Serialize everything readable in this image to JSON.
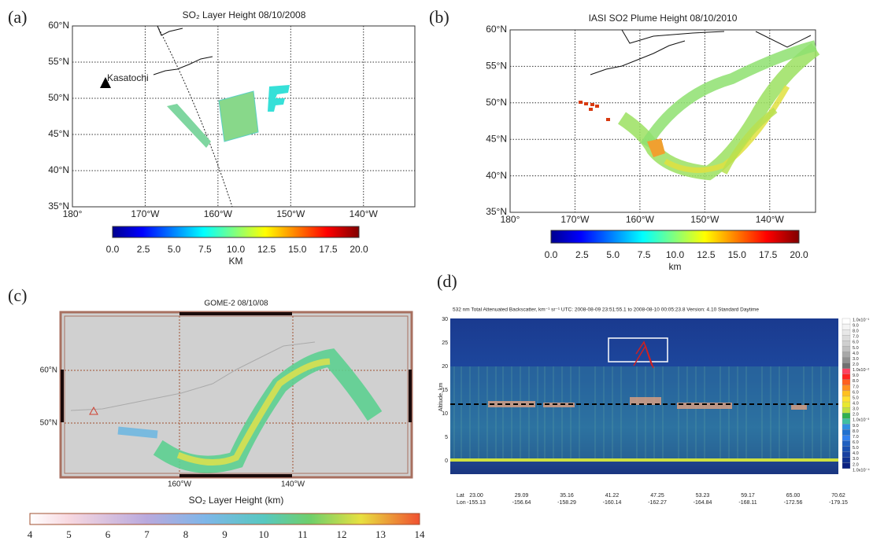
{
  "panels": [
    {
      "label": "(a)",
      "title": "SO₂ Layer Height 08/10/2008",
      "lat_ticks": [
        "60°N",
        "55°N",
        "50°N",
        "45°N",
        "40°N",
        "35°N"
      ],
      "lon_ticks": [
        "180°",
        "170°W",
        "160°W",
        "150°W",
        "140°W"
      ],
      "annotation": "Kasatochi",
      "colorbar": {
        "ticks": [
          "0.0",
          "2.5",
          "5.0",
          "7.5",
          "10.0",
          "12.5",
          "15.0",
          "17.5",
          "20.0"
        ],
        "label": "KM"
      }
    },
    {
      "label": "(b)",
      "title": "IASI SO2 Plume Height 08/10/2010",
      "lat_ticks": [
        "60°N",
        "55°N",
        "50°N",
        "45°N",
        "40°N",
        "35°N"
      ],
      "lon_ticks": [
        "180°",
        "170°W",
        "160°W",
        "150°W",
        "140°W"
      ],
      "colorbar": {
        "ticks": [
          "0.0",
          "2.5",
          "5.0",
          "7.5",
          "10.0",
          "12.5",
          "15.0",
          "17.5",
          "20.0"
        ],
        "label": "km"
      }
    },
    {
      "label": "(c)",
      "title": "GOME-2 08/10/08",
      "lat_ticks": [
        "60°N",
        "50°N"
      ],
      "lon_ticks": [
        "160°W",
        "140°W"
      ],
      "colorbar": {
        "ticks": [
          "4",
          "5",
          "6",
          "7",
          "8",
          "9",
          "10",
          "11",
          "12",
          "13",
          "14"
        ],
        "label": "SO₂ Layer Height (km)"
      }
    },
    {
      "label": "(d)",
      "title": "532 nm Total Attenuated Backscatter, km⁻¹ sr⁻¹   UTC: 2008-08-09 23:51:55.1  to  2008-08-10 00:05:23.8   Version: 4.10  Standard  Daytime",
      "y_label": "Altitude, km",
      "y_ticks": [
        "0",
        "5",
        "10",
        "15",
        "20",
        "25",
        "30"
      ],
      "lat_label": "Lat",
      "lon_label": "Lon",
      "lats": [
        "23.00",
        "29.09",
        "35.16",
        "41.22",
        "47.25",
        "53.23",
        "59.17",
        "65.00",
        "70.62"
      ],
      "lons": [
        "-155.13",
        "-156.64",
        "-158.29",
        "-160.14",
        "-162.27",
        "-164.84",
        "-168.11",
        "-172.56",
        "-179.15"
      ],
      "colorbar": {
        "ticks": [
          "1.0x10⁻¹",
          "9.0",
          "8.0",
          "7.0",
          "6.0",
          "5.0",
          "4.0",
          "3.0",
          "2.0",
          "1.0x10⁻²",
          "9.0",
          "8.0",
          "7.0",
          "6.0",
          "5.0",
          "4.0",
          "3.0",
          "2.0",
          "1.0x10⁻³",
          "9.0",
          "8.0",
          "7.0",
          "6.0",
          "5.0",
          "4.0",
          "3.0",
          "2.0",
          "1.0x10⁻⁴"
        ]
      }
    }
  ]
}
